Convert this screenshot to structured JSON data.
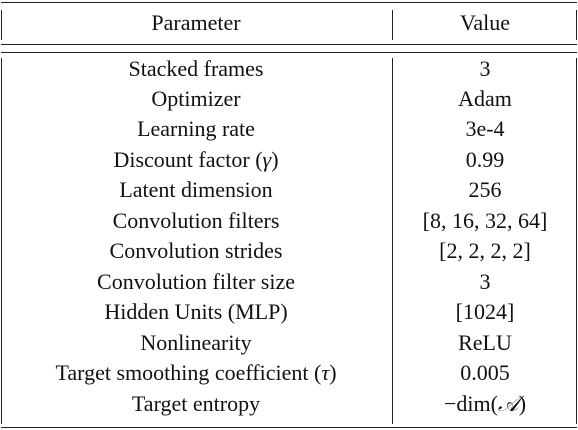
{
  "table": {
    "headers": {
      "parameter": "Parameter",
      "value": "Value"
    },
    "rows": [
      {
        "parameter": "Stacked frames",
        "value": "3"
      },
      {
        "parameter": "Optimizer",
        "value": "Adam"
      },
      {
        "parameter": "Learning rate",
        "value": "3e-4"
      },
      {
        "parameter": "Discount factor",
        "parameter_symbol": "γ",
        "value": "0.99"
      },
      {
        "parameter": "Latent dimension",
        "value": "256"
      },
      {
        "parameter": "Convolution filters",
        "value": "[8, 16, 32, 64]"
      },
      {
        "parameter": "Convolution strides",
        "value": "[2, 2, 2, 2]"
      },
      {
        "parameter": "Convolution filter size",
        "value": "3"
      },
      {
        "parameter": "Hidden Units (MLP)",
        "value": "[1024]"
      },
      {
        "parameter": "Nonlinearity",
        "value": "ReLU"
      },
      {
        "parameter": "Target smoothing coefficient",
        "parameter_symbol": "τ",
        "value": "0.005"
      },
      {
        "parameter": "Target entropy",
        "value_prefix": "−dim(",
        "value_symbol": "𝒜",
        "value_suffix": ")"
      }
    ]
  }
}
